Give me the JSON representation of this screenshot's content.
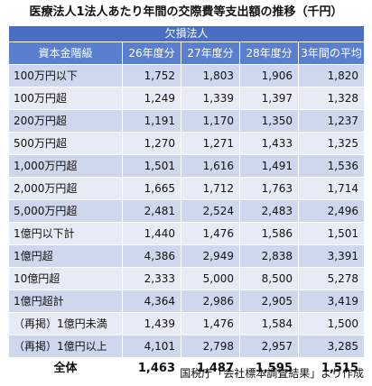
{
  "title": "医療法人1法人あたり年間の交際費等支出額の推移（千円）",
  "band": "欠損法人",
  "columns": [
    "資本金階級",
    "26年度分",
    "27年度分",
    "28年度分",
    "3年間の平均"
  ],
  "rows": [
    {
      "label": "100万円以下",
      "values": [
        "1,752",
        "1,803",
        "1,906",
        "1,820"
      ]
    },
    {
      "label": "100万円超",
      "values": [
        "1,249",
        "1,339",
        "1,397",
        "1,328"
      ]
    },
    {
      "label": "200万円超",
      "values": [
        "1,191",
        "1,170",
        "1,350",
        "1,237"
      ]
    },
    {
      "label": "500万円超",
      "values": [
        "1,270",
        "1,271",
        "1,433",
        "1,325"
      ]
    },
    {
      "label": "1,000万円超",
      "values": [
        "1,501",
        "1,616",
        "1,491",
        "1,536"
      ]
    },
    {
      "label": "2,000万円超",
      "values": [
        "1,665",
        "1,712",
        "1,763",
        "1,714"
      ]
    },
    {
      "label": "5,000万円超",
      "values": [
        "2,481",
        "2,524",
        "2,483",
        "2,496"
      ]
    },
    {
      "label": "1億円以下計",
      "values": [
        "1,440",
        "1,476",
        "1,586",
        "1,501"
      ]
    },
    {
      "label": "1億円超",
      "values": [
        "4,386",
        "2,949",
        "2,838",
        "3,391"
      ]
    },
    {
      "label": "10億円超",
      "values": [
        "2,333",
        "5,000",
        "8,500",
        "5,278"
      ]
    },
    {
      "label": "1億円超計",
      "values": [
        "4,364",
        "2,986",
        "2,905",
        "3,419"
      ]
    },
    {
      "label": "（再掲）1億円未満",
      "values": [
        "1,439",
        "1,476",
        "1,584",
        "1,500"
      ]
    },
    {
      "label": "（再掲）1億円以上",
      "values": [
        "4,101",
        "2,798",
        "2,957",
        "3,285"
      ]
    }
  ],
  "total": {
    "label": "全体",
    "values": [
      "1,463",
      "1,487",
      "1,595",
      "1,515"
    ]
  },
  "source": "国税庁「会社標本調査結果」より作成"
}
